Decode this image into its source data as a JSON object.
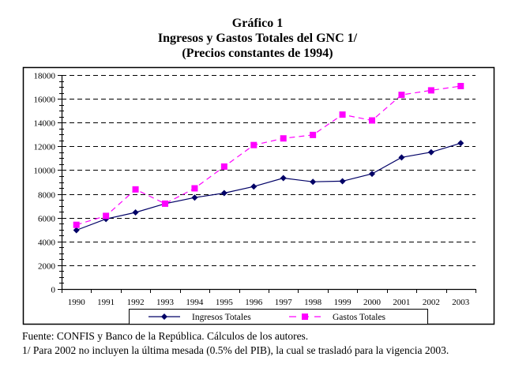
{
  "chart_data": {
    "type": "line",
    "title": "Gráfico 1",
    "subtitle_lines": [
      "Ingresos y Gastos Totales del GNC  1/",
      "(Precios constantes de 1994)"
    ],
    "xlabel": "",
    "ylabel": "",
    "categories": [
      "1990",
      "1991",
      "1992",
      "1993",
      "1994",
      "1995",
      "1996",
      "1997",
      "1998",
      "1999",
      "2000",
      "2001",
      "2002",
      "2003"
    ],
    "ylim": [
      0,
      18000
    ],
    "yticks": [
      0,
      2000,
      4000,
      6000,
      8000,
      10000,
      12000,
      14000,
      16000,
      18000
    ],
    "ytick_labels": [
      "0",
      "2000",
      "4000",
      "6000",
      "8000",
      "10000",
      "12000",
      "14000",
      "16000",
      "18000"
    ],
    "grid": true,
    "legend_position": "bottom",
    "series": [
      {
        "name": "Ingresos Totales",
        "color": "#000066",
        "marker": "diamond",
        "line_style": "solid",
        "values": [
          4950,
          5890,
          6440,
          7180,
          7690,
          8070,
          8620,
          9330,
          9020,
          9070,
          9690,
          11070,
          11510,
          12270
        ]
      },
      {
        "name": "Gastos Totales",
        "color": "#FF00FF",
        "marker": "square",
        "line_style": "dashed",
        "values": [
          5400,
          6150,
          8380,
          7180,
          8470,
          10300,
          12110,
          12670,
          12960,
          14670,
          14180,
          16330,
          16710,
          17070
        ]
      }
    ]
  },
  "notes": {
    "source": "Fuente: CONFIS y Banco de la República. Cálculos de los autores.",
    "footnote": "1/ Para 2002 no incluyen la última mesada (0.5% del PIB), la cual se trasladó para la vigencia 2003."
  }
}
